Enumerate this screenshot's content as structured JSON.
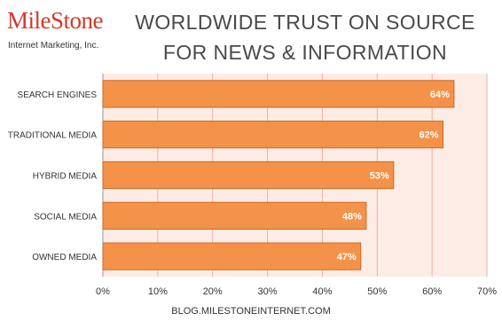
{
  "logo": {
    "name": "MileStone",
    "tagline": "Internet Marketing, Inc."
  },
  "colors": {
    "bar": "#f4924a",
    "bar_border": "#c86a24",
    "plot_bg": "#fdece6",
    "grid": "#e9b2a4",
    "axis_text": "#333333"
  },
  "footer": "BLOG.MILESTONEINTERNET.COM",
  "chart_data": {
    "type": "bar",
    "orientation": "horizontal",
    "title": "WORLDWIDE TRUST ON SOURCE FOR NEWS & INFORMATION",
    "categories": [
      "SEARCH ENGINES",
      "TRADITIONAL MEDIA",
      "HYBRID MEDIA",
      "SOCIAL MEDIA",
      "OWNED MEDIA"
    ],
    "values": [
      64,
      62,
      53,
      48,
      47
    ],
    "data_labels": [
      "64%",
      "62%",
      "53%",
      "48%",
      "47%"
    ],
    "xticks": [
      0,
      10,
      20,
      30,
      40,
      50,
      60,
      70
    ],
    "xtick_labels": [
      "0%",
      "10%",
      "20%",
      "30%",
      "40%",
      "50%",
      "60%",
      "70%"
    ],
    "xlim": [
      0,
      70
    ],
    "xlabel": "",
    "ylabel": "",
    "grid": true,
    "legend": "none"
  }
}
